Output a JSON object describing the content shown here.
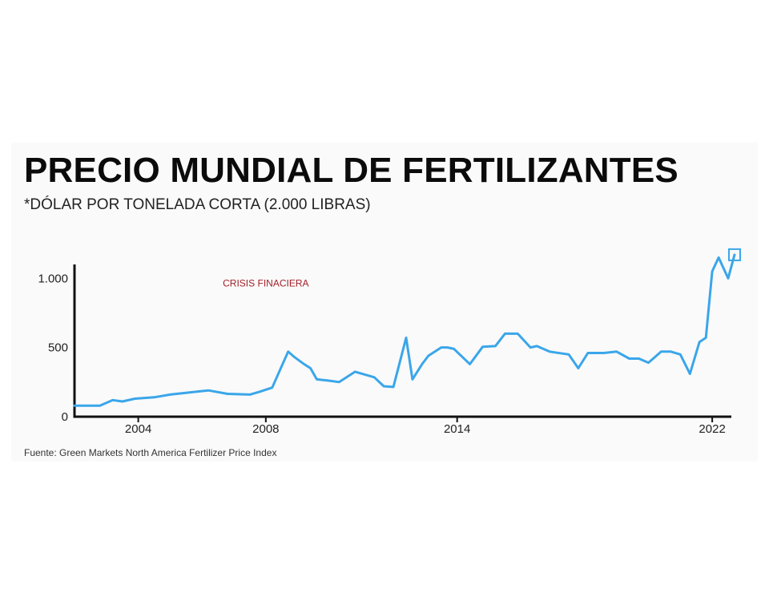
{
  "title": "PRECIO MUNDIAL DE FERTILIZANTES",
  "subtitle": "*DÓLAR POR TONELADA CORTA (2.000 LIBRAS)",
  "source": "Fuente: Green Markets North America Fertilizer Price Index",
  "colors": {
    "line": "#3aa6ea",
    "axis": "#111111",
    "annotation": "#a3202a"
  },
  "chart_data": {
    "type": "line",
    "title": "PRECIO MUNDIAL DE FERTILIZANTES",
    "subtitle": "*DÓLAR POR TONELADA CORTA (2.000 LIBRAS)",
    "xlabel": "",
    "ylabel": "",
    "xlim": [
      2002.0,
      2022.6
    ],
    "ylim": [
      0,
      1100
    ],
    "x_ticks": [
      {
        "value": 2004,
        "label": "2004"
      },
      {
        "value": 2008,
        "label": "2008"
      },
      {
        "value": 2014,
        "label": "2014"
      },
      {
        "value": 2022,
        "label": "2022"
      }
    ],
    "y_ticks": [
      {
        "value": 0,
        "label": "0"
      },
      {
        "value": 500,
        "label": "500"
      },
      {
        "value": 1000,
        "label": "1.000"
      }
    ],
    "grid": false,
    "legend": "none",
    "annotations": [
      {
        "text": "CRISIS FINACIERA",
        "x": 2008.0,
        "y": 940
      }
    ],
    "series": [
      {
        "x": [
          2002.0,
          2002.3,
          2002.8,
          2003.2,
          2003.5,
          2003.9,
          2004.5,
          2005.0,
          2006.2,
          2006.8,
          2007.5,
          2007.8,
          2008.2,
          2008.7,
          2008.9,
          2009.2,
          2009.4,
          2009.6,
          2010.0,
          2010.3,
          2010.8,
          2011.4,
          2011.7,
          2012.0,
          2012.4,
          2012.6,
          2012.9,
          2013.1,
          2013.5,
          2013.7,
          2013.9,
          2014.4,
          2014.8,
          2015.2,
          2015.5,
          2015.9,
          2016.3,
          2016.5,
          2016.9,
          2017.5,
          2017.8,
          2018.1,
          2018.6,
          2019.0,
          2019.4,
          2019.7,
          2020.0,
          2020.4,
          2020.7,
          2021.0,
          2021.3,
          2021.6,
          2021.8,
          2022.0,
          2022.2,
          2022.5,
          2022.7
        ],
        "y": [
          80,
          80,
          80,
          120,
          110,
          130,
          140,
          160,
          190,
          165,
          160,
          180,
          210,
          470,
          430,
          380,
          350,
          270,
          260,
          250,
          325,
          285,
          220,
          215,
          570,
          270,
          380,
          440,
          500,
          500,
          490,
          380,
          505,
          510,
          600,
          600,
          500,
          510,
          470,
          450,
          350,
          460,
          460,
          470,
          420,
          420,
          390,
          470,
          470,
          450,
          310,
          540,
          570,
          1050,
          1150,
          1000,
          1170
        ]
      }
    ]
  }
}
